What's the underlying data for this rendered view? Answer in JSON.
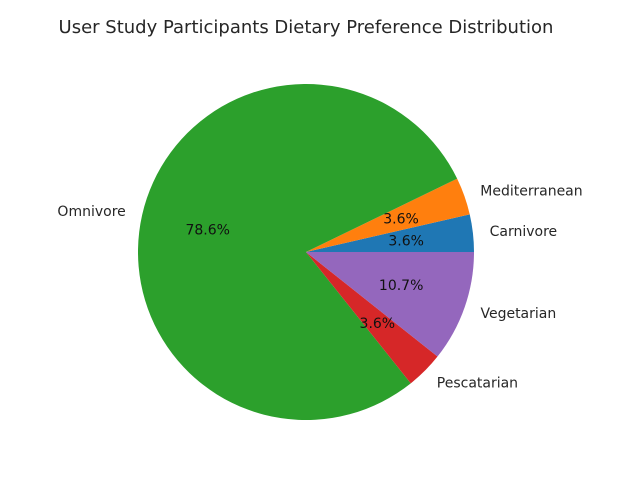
{
  "chart_data": {
    "type": "pie",
    "title": "User Study Participants Dietary Preference Distribution",
    "start_angle_deg": 0,
    "direction": "counterclockwise",
    "slices": [
      {
        "label": "Carnivore",
        "value": 3.6,
        "pct_text": "3.6%",
        "color": "#1f77b4"
      },
      {
        "label": "Mediterranean",
        "value": 3.6,
        "pct_text": "3.6%",
        "color": "#ff7f0e"
      },
      {
        "label": "Omnivore",
        "value": 78.6,
        "pct_text": "78.6%",
        "color": "#2ca02c"
      },
      {
        "label": "Pescatarian",
        "value": 3.6,
        "pct_text": "3.6%",
        "color": "#d62728"
      },
      {
        "label": "Vegetarian",
        "value": 10.7,
        "pct_text": "10.7%",
        "color": "#9467bd"
      }
    ]
  }
}
